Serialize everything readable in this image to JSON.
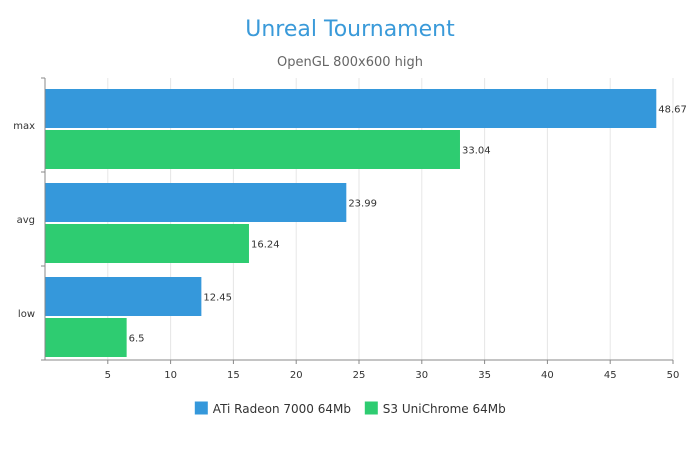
{
  "chart_data": {
    "type": "bar",
    "orientation": "horizontal",
    "title": "Unreal Tournament",
    "subtitle": "OpenGL 800x600 high",
    "categories": [
      "max",
      "avg",
      "low"
    ],
    "series": [
      {
        "name": "ATi Radeon 7000 64Mb",
        "color": "#3598db",
        "values": [
          48.67,
          23.99,
          12.45
        ],
        "labels": [
          "48.67",
          "23.99",
          "12.45"
        ]
      },
      {
        "name": "S3 UniChrome 64Mb",
        "color": "#2ecc71",
        "values": [
          33.04,
          16.24,
          6.5
        ],
        "labels": [
          "33.04",
          "16.24",
          "6.5"
        ]
      }
    ],
    "xlim": [
      0,
      50
    ],
    "xticks": [
      5,
      10,
      15,
      20,
      25,
      30,
      35,
      40,
      45,
      50
    ],
    "grid": true,
    "legend": "bottom-center",
    "colors": {
      "title": "#3a9ad9",
      "grid": "#e6e6e6",
      "axis": "#888888"
    }
  }
}
